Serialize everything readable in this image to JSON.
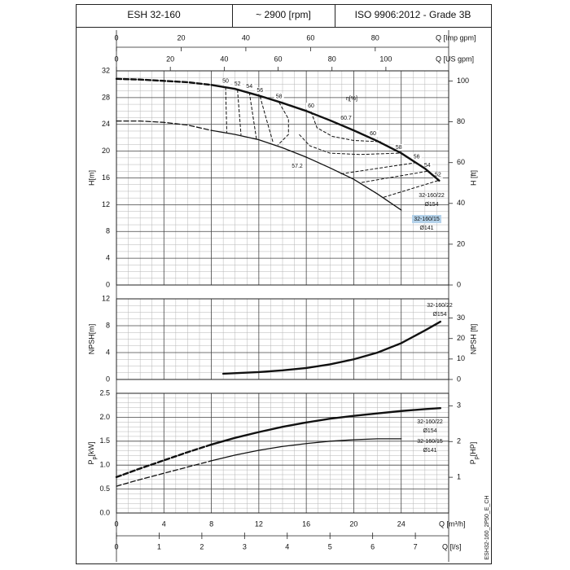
{
  "header": {
    "model": "ESH 32-160",
    "speed": "~ 2900 [rpm]",
    "standard": "ISO 9906:2012 - Grade 3B"
  },
  "code": "ESH32-160_2P50_E_CH",
  "chart_data": [
    {
      "type": "line",
      "ylabel": "H[m]",
      "y2label": "H [ft]",
      "ylim": [
        0,
        32
      ],
      "yticks": [
        0,
        4,
        8,
        12,
        16,
        20,
        24,
        28,
        32
      ],
      "y2lim": [
        0,
        105
      ],
      "y2ticks": [
        0,
        20,
        40,
        60,
        80,
        100
      ],
      "x2_axes": [
        {
          "label": "Q [Imp gpm]",
          "lim": [
            0,
            102.7
          ],
          "ticks": [
            0,
            20,
            40,
            60,
            80
          ]
        },
        {
          "label": "Q [US gpm]",
          "lim": [
            0,
            123.3
          ],
          "ticks": [
            0,
            20,
            40,
            60,
            80,
            100
          ]
        }
      ],
      "series": [
        {
          "name": "32-160/22",
          "diameter": "Ø154",
          "color": "#111111",
          "width": 2.4,
          "dashed_until": 8,
          "x": [
            0,
            2,
            4,
            6,
            8,
            10,
            12,
            14,
            16,
            18,
            20,
            22,
            24,
            26,
            27.2
          ],
          "values": [
            30.8,
            30.7,
            30.5,
            30.3,
            29.9,
            29.3,
            28.3,
            27.2,
            26.0,
            24.6,
            23.1,
            21.5,
            19.7,
            17.4,
            15.6
          ]
        },
        {
          "name": "32-160/15",
          "diameter": "Ø141",
          "color": "#111111",
          "width": 1.3,
          "dashed_until": 8,
          "label_highlight": "#b4d2ea",
          "x": [
            0,
            2,
            4,
            6,
            8,
            10,
            12,
            14,
            16,
            18,
            20,
            22,
            24
          ],
          "values": [
            24.5,
            24.5,
            24.3,
            23.9,
            23.1,
            22.5,
            21.7,
            20.5,
            19.1,
            17.5,
            15.8,
            13.6,
            11.2
          ]
        }
      ],
      "efficiency_label": "η[%]",
      "efficiency_lines": [
        {
          "label": "50",
          "x": [
            9.2,
            9.3
          ],
          "values": [
            29.6,
            22.8
          ]
        },
        {
          "label": "52",
          "x": [
            10.2,
            10.5
          ],
          "values": [
            29.2,
            22.4
          ]
        },
        {
          "label": "54",
          "x": [
            11.2,
            11.8
          ],
          "values": [
            28.8,
            21.8
          ]
        },
        {
          "label": "56",
          "x": [
            12.1,
            12.6,
            13.2
          ],
          "values": [
            28.2,
            25.0,
            21.3
          ]
        },
        {
          "label": "58",
          "x": [
            13.7,
            14.5,
            14.5,
            13.6
          ],
          "values": [
            27.3,
            24.8,
            22.5,
            20.9
          ]
        },
        {
          "label": "60",
          "x": [
            16.4,
            16.9,
            18.2,
            20,
            22.3
          ],
          "values": [
            25.9,
            23.5,
            22.2,
            21.6,
            21.4
          ]
        },
        {
          "label": "58",
          "x": [
            23.8,
            20.5,
            18,
            16.3,
            15.4
          ],
          "values": [
            19.7,
            19.5,
            19.7,
            20.8,
            22.5
          ]
        },
        {
          "label": "56",
          "x": [
            25.3,
            18.9
          ],
          "values": [
            18.3,
            16.6
          ]
        },
        {
          "label": "54",
          "x": [
            26.2,
            20.6
          ],
          "values": [
            17.0,
            15.3
          ]
        },
        {
          "label": "52",
          "x": [
            27.1,
            22.5
          ],
          "values": [
            15.6,
            13.1
          ]
        }
      ],
      "annotations": [
        "60",
        "60.7",
        "57.2"
      ]
    },
    {
      "type": "line",
      "ylabel": "NPSH[m]",
      "y2label": "NPSH [ft]",
      "ylim": [
        0,
        12
      ],
      "yticks": [
        0,
        4,
        8,
        12
      ],
      "y2lim": [
        0,
        39.4
      ],
      "y2ticks": [
        0,
        10,
        20,
        30
      ],
      "series": [
        {
          "name": "32-160/22",
          "diameter": "Ø154",
          "color": "#111111",
          "width": 2.4,
          "x": [
            9,
            12,
            14,
            16,
            18,
            20,
            22,
            24,
            26,
            27.3
          ],
          "values": [
            0.85,
            1.1,
            1.35,
            1.7,
            2.25,
            3.0,
            4.0,
            5.4,
            7.3,
            8.6
          ]
        }
      ]
    },
    {
      "type": "line",
      "ylabel": {
        "main": "P",
        "sub": "p",
        "unit": "[kW]"
      },
      "y2label": {
        "main": "P",
        "sub": "p",
        "unit": "[HP]"
      },
      "ylim": [
        0,
        2.5
      ],
      "yticks": [
        {
          "value": 0,
          "label": "0.0"
        },
        0.5,
        {
          "value": 1,
          "label": "1.0"
        },
        1.5,
        {
          "value": 2,
          "label": "2.0"
        },
        2.5
      ],
      "y2lim": [
        0,
        3.35
      ],
      "y2ticks": [
        1,
        2,
        3
      ],
      "xlabel": "Q [m³/h]",
      "xlim": [
        0,
        28
      ],
      "xticks": [
        0,
        4,
        8,
        12,
        16,
        20,
        24
      ],
      "x2_axis": {
        "label": "Q [l/s]",
        "lim": [
          0,
          7.78
        ],
        "ticks": [
          0,
          1,
          2,
          3,
          4,
          5,
          6,
          7
        ]
      },
      "series": [
        {
          "name": "32-160/22",
          "diameter": "Ø154",
          "color": "#111111",
          "width": 2.4,
          "dashed_until": 8,
          "x": [
            0,
            2,
            4,
            6,
            8,
            10,
            12,
            14,
            16,
            18,
            20,
            22,
            24,
            26,
            27.3
          ],
          "values": [
            0.75,
            0.93,
            1.1,
            1.27,
            1.43,
            1.57,
            1.69,
            1.8,
            1.89,
            1.97,
            2.03,
            2.08,
            2.13,
            2.17,
            2.19
          ]
        },
        {
          "name": "32-160/15",
          "diameter": "Ø141",
          "color": "#111111",
          "width": 1.3,
          "dashed_until": 8,
          "x": [
            0,
            2,
            4,
            6,
            8,
            10,
            12,
            14,
            16,
            18,
            20,
            22,
            24
          ],
          "values": [
            0.56,
            0.7,
            0.83,
            0.96,
            1.09,
            1.21,
            1.31,
            1.39,
            1.45,
            1.5,
            1.53,
            1.55,
            1.55
          ]
        }
      ]
    }
  ]
}
